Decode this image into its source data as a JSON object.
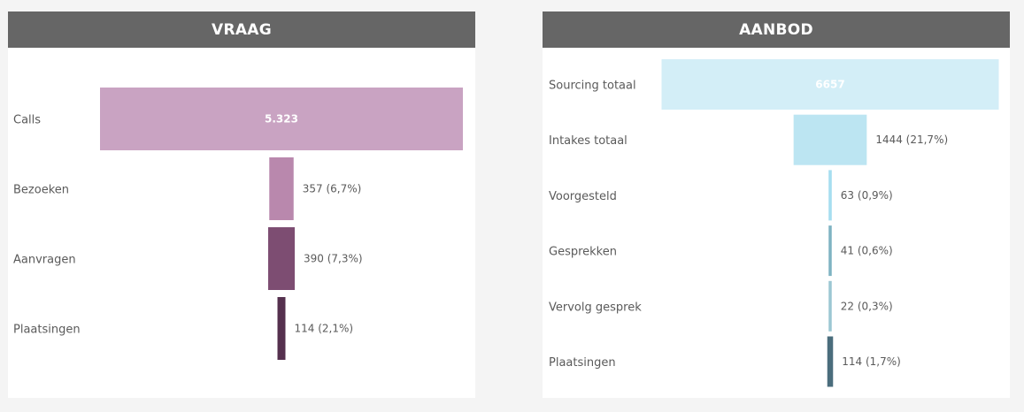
{
  "chart_data": [
    {
      "type": "funnel",
      "title": "VRAAG",
      "categories": [
        "Calls",
        "Bezoeken",
        "Aanvragen",
        "Plaatsingen"
      ],
      "values": [
        5323,
        357,
        390,
        114
      ],
      "value_labels": [
        "5.323",
        "357 (6,7%)",
        "390 (7,3%)",
        "114 (2,1%)"
      ],
      "colors": [
        "#c9a3c2",
        "#b988ad",
        "#7d4d72",
        "#55304e"
      ]
    },
    {
      "type": "funnel",
      "title": "AANBOD",
      "categories": [
        "Sourcing totaal",
        "Intakes totaal",
        "Voorgesteld",
        "Gesprekken",
        "Vervolg gesprek",
        "Plaatsingen"
      ],
      "values": [
        6657,
        1444,
        63,
        41,
        22,
        114
      ],
      "value_labels": [
        "6657",
        "1444 (21,7%)",
        "63 (0,9%)",
        "41 (0,6%)",
        "22 (0,3%)",
        "114 (1,7%)"
      ],
      "colors": [
        "#d3eef7",
        "#bce5f2",
        "#a6def0",
        "#7fb3c2",
        "#9bc7d3",
        "#4a6d7c"
      ]
    }
  ]
}
